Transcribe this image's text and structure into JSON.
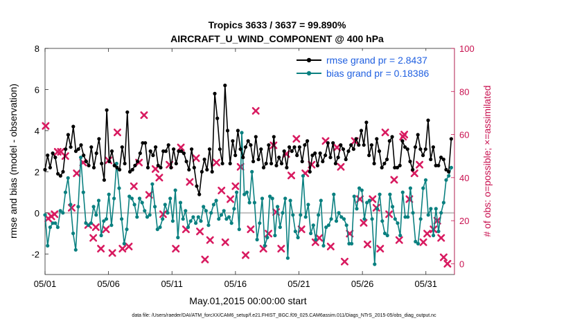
{
  "chart_data": {
    "type": "line",
    "title": "Tropics 3633 / 3637 = 99.890%",
    "subtitle": "AIRCRAFT_U_WIND_COMPONENT @ 400 hPa",
    "xlabel": "May.01,2015 00:00:00 start",
    "ylabel": "rmse and bias (model - observation)",
    "ylabel_right": "# of obs: o=possible; ×=assimilated",
    "xlim": [
      0,
      32.25
    ],
    "ylim": [
      -3,
      8
    ],
    "ylim_right": [
      -5,
      100
    ],
    "x_ticks": [
      0,
      5,
      10,
      15,
      20,
      25,
      30
    ],
    "x_tick_labels": [
      "05/01",
      "05/06",
      "05/11",
      "05/16",
      "05/21",
      "05/26",
      "05/31"
    ],
    "y_ticks": [
      -2,
      0,
      2,
      4,
      6,
      8
    ],
    "y_tick_labels": [
      "-2",
      "0",
      "2",
      "4",
      "6",
      "8"
    ],
    "y_ticks_right": [
      0,
      20,
      40,
      60,
      80,
      100
    ],
    "y_tick_labels_right": [
      "0",
      "20",
      "40",
      "60",
      "80",
      "100"
    ],
    "zero_line": 0,
    "legend": [
      {
        "label": "rmse grand pr = 2.8437",
        "color": "#000000"
      },
      {
        "label": "bias grand pr = 0.18386",
        "color": "#0a8080"
      }
    ],
    "series": [
      {
        "name": "rmse",
        "color": "#000000",
        "values": [
          2.1,
          2.8,
          2.2,
          2.9,
          2.7,
          1.9,
          1.8,
          2.0,
          3.1,
          3.8,
          3.2,
          4.2,
          3.0,
          3.1,
          3.3,
          2.8,
          2.5,
          2.3,
          3.2,
          2.2,
          2.9,
          3.6,
          2.4,
          1.6,
          5.0,
          2.5,
          3.0,
          2.3,
          2.2,
          2.1,
          3.2,
          2.4,
          4.9,
          2.0,
          2.1,
          2.3,
          2.5,
          2.9,
          3.4,
          3.4,
          2.2,
          3.0,
          2.8,
          3.2,
          2.3,
          2.2,
          3.0,
          3.0,
          3.3,
          2.2,
          3.1,
          2.4,
          3.0,
          3.0,
          2.9,
          2.5,
          2.1,
          3.1,
          2.2,
          1.3,
          0.9,
          2.0,
          2.6,
          2.1,
          3.1,
          2.0,
          5.8,
          4.6,
          3.1,
          2.4,
          6.2,
          4.0,
          2.4,
          3.5,
          2.8,
          4.0,
          3.1,
          2.7,
          3.2,
          3.5,
          3.3,
          2.5,
          3.7,
          2.6,
          3.1,
          2.2,
          2.4,
          3.3,
          2.4,
          3.7,
          2.3,
          2.7,
          2.4,
          3.0,
          2.2,
          3.2,
          3.0,
          3.2,
          2.8,
          3.2,
          2.5,
          3.3,
          3.5,
          2.0,
          2.8,
          2.9,
          2.3,
          2.9,
          2.5,
          2.8,
          3.4,
          2.7,
          3.4,
          2.4,
          2.7,
          3.3,
          3.1,
          2.6,
          3.0,
          3.3,
          3.1,
          3.6,
          3.3,
          4.0,
          3.3,
          4.4,
          2.8,
          3.3,
          2.4,
          3.6,
          3.0,
          2.2,
          2.4,
          2.6,
          3.5,
          3.7,
          2.2,
          2.2,
          2.3,
          3.5,
          3.2,
          3.1,
          2.5,
          2.1,
          3.2,
          3.8,
          3.1,
          2.8,
          3.1,
          4.5,
          2.6,
          3.2,
          2.3,
          2.3,
          2.7,
          2.6,
          2.1,
          2.0,
          3.6
        ]
      },
      {
        "name": "bias",
        "color": "#0a8080",
        "values": [
          -0.1,
          -1.6,
          -0.7,
          -0.5,
          -0.5,
          -0.7,
          0.1,
          0.0,
          1.0,
          1.7,
          0.4,
          -1.0,
          -1.8,
          0.3,
          2.7,
          1.0,
          -0.5,
          -0.6,
          -0.5,
          0.3,
          -0.1,
          0.6,
          -1.1,
          -0.4,
          -0.3,
          0.9,
          -0.6,
          0.7,
          2.4,
          1.2,
          -0.3,
          -1.5,
          -0.8,
          0.8,
          0.7,
          0.4,
          -0.2,
          0.7,
          0.5,
          0.1,
          -0.2,
          -0.1,
          1.4,
          0.3,
          -0.8,
          -0.7,
          -0.3,
          0.4,
          0.0,
          0.7,
          -0.4,
          1.1,
          -1.2,
          0.5,
          -0.3,
          0.1,
          -0.7,
          -0.4,
          -0.2,
          -0.5,
          -0.2,
          -0.4,
          0.3,
          0.1,
          -0.6,
          0.0,
          0.4,
          0.6,
          -0.3,
          -0.1,
          0.1,
          -0.3,
          -0.2,
          -0.5,
          0.2,
          1.0,
          -0.8,
          3.9,
          0.9,
          1.0,
          0.5,
          2.0,
          0.5,
          -1.3,
          -0.5,
          0.7,
          -1.6,
          -1.2,
          0.8,
          0.7,
          -1.1,
          0.3,
          -0.7,
          0.0,
          0.7,
          -2.2,
          0.6,
          -0.1,
          -0.9,
          -1.2,
          -0.1,
          1.8,
          -0.2,
          0.4,
          -1.0,
          -0.6,
          -1.3,
          -0.1,
          0.6,
          -1.6,
          -0.7,
          -0.6,
          -0.3,
          0.9,
          -0.4,
          0.0,
          -0.2,
          -0.3,
          -0.6,
          -1.5,
          -1.5,
          0.8,
          0.2,
          1.2,
          1.1,
          -0.3,
          0.5,
          0.6,
          -0.3,
          -2.5,
          0.2,
          0.9,
          -0.4,
          -1.0,
          -1.1,
          0.9,
          0.3,
          -0.3,
          -0.5,
          -1.1,
          1.0,
          -0.2,
          -0.2,
          1.2,
          0.0,
          -1.4,
          -1.5,
          -0.3,
          1.2,
          1.6,
          -0.1,
          0.2,
          -1.1,
          0.2,
          -0.9,
          0.0,
          0.5,
          1.6,
          1.8,
          2.2
        ]
      },
      {
        "name": "obs_assimilated",
        "axis": "right",
        "color": "#d81b60",
        "points": [
          [
            0.05,
            64
          ],
          [
            0.25,
            21
          ],
          [
            0.5,
            22
          ],
          [
            0.75,
            23
          ],
          [
            1.0,
            52
          ],
          [
            1.25,
            52
          ],
          [
            1.6,
            50
          ],
          [
            2.1,
            26
          ],
          [
            2.5,
            42
          ],
          [
            3.0,
            47
          ],
          [
            3.4,
            18
          ],
          [
            3.8,
            12
          ],
          [
            4.0,
            17
          ],
          [
            4.4,
            7
          ],
          [
            4.8,
            16
          ],
          [
            5.0,
            48
          ],
          [
            5.3,
            5
          ],
          [
            5.7,
            61
          ],
          [
            6.1,
            7
          ],
          [
            6.6,
            8
          ],
          [
            7.0,
            36
          ],
          [
            7.4,
            47
          ],
          [
            7.8,
            69
          ],
          [
            8.2,
            32
          ],
          [
            8.7,
            44
          ],
          [
            9.0,
            40
          ],
          [
            9.3,
            23
          ],
          [
            9.8,
            46
          ],
          [
            10.3,
            7
          ],
          [
            10.7,
            54
          ],
          [
            11.1,
            16
          ],
          [
            11.4,
            38
          ],
          [
            11.9,
            49
          ],
          [
            12.2,
            15
          ],
          [
            12.6,
            2
          ],
          [
            13.0,
            11
          ],
          [
            13.5,
            47
          ],
          [
            13.9,
            34
          ],
          [
            14.2,
            10
          ],
          [
            14.6,
            30
          ],
          [
            15.0,
            36
          ],
          [
            15.4,
            45
          ],
          [
            15.8,
            4
          ],
          [
            16.2,
            16
          ],
          [
            16.6,
            71
          ],
          [
            17.2,
            7
          ],
          [
            17.6,
            14
          ],
          [
            18.0,
            55
          ],
          [
            18.2,
            24
          ],
          [
            18.6,
            7
          ],
          [
            19.0,
            51
          ],
          [
            19.4,
            41
          ],
          [
            19.8,
            58
          ],
          [
            20.2,
            16
          ],
          [
            20.5,
            42
          ],
          [
            21.0,
            46
          ],
          [
            21.3,
            10
          ],
          [
            21.6,
            12
          ],
          [
            22.1,
            57
          ],
          [
            22.5,
            8
          ],
          [
            23.0,
            54
          ],
          [
            23.3,
            45
          ],
          [
            23.6,
            1
          ],
          [
            24.0,
            14
          ],
          [
            24.4,
            57
          ],
          [
            24.8,
            30
          ],
          [
            25.1,
            19
          ],
          [
            25.4,
            9
          ],
          [
            25.8,
            30
          ],
          [
            26.1,
            26
          ],
          [
            26.4,
            7
          ],
          [
            26.8,
            61
          ],
          [
            27.1,
            23
          ],
          [
            27.5,
            39
          ],
          [
            27.9,
            11
          ],
          [
            28.2,
            59
          ],
          [
            28.3,
            60
          ],
          [
            28.7,
            30
          ],
          [
            29.1,
            42
          ],
          [
            29.5,
            46
          ],
          [
            29.8,
            10
          ],
          [
            30.1,
            14
          ],
          [
            30.6,
            16
          ],
          [
            30.9,
            20
          ],
          [
            31.2,
            12
          ],
          [
            31.4,
            3
          ],
          [
            31.7,
            0
          ]
        ]
      }
    ]
  },
  "footer": {
    "text": "data file: /Users/raeder/DAI/ATM_forcXX/CAM6_setup/f.e21.FHIST_BGC.f09_025.CAM6assim.011/Diags_NTrS_2015-05/obs_diag_output.nc"
  }
}
